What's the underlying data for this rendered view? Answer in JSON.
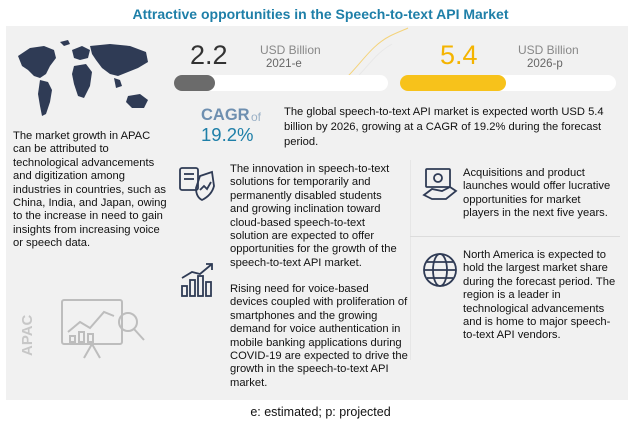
{
  "title": "Attractive opportunities in the Speech-to-text API Market",
  "market_2021": {
    "value": "2.2",
    "unit": "USD Billion",
    "year": "2021-e",
    "bar_fraction": 0.19
  },
  "market_2026": {
    "value": "5.4",
    "unit": "USD Billion",
    "year": "2026-p",
    "bar_fraction": 0.49
  },
  "cagr": {
    "label": "CAGR",
    "of_label": "of",
    "value": "19.2%"
  },
  "summary": "The global speech-to-text API market is expected worth USD 5.4 billion by 2026, growing at a CAGR of 19.2% during the forecast period.",
  "apac": {
    "text": "The market growth in APAC can be attributed to technological advancements and digitization among industries in countries, such as China, India, and Japan, owing to the increase in need to gain insights from increasing voice or speech data.",
    "vertical_label": "APAC"
  },
  "points": [
    {
      "icon": "shield-chart-icon",
      "text": "The innovation in speech-to-text solutions for temporarily and permanently disabled students and growing inclination toward cloud-based speech-to-text solution are expected to offer opportunities for the growth of the speech-to-text API market."
    },
    {
      "icon": "bar-trend-icon",
      "text": "Rising need for voice-based devices coupled with proliferation of smartphones and the growing demand for voice authentication in mobile banking applications during COVID-19 are expected to drive the growth in the speech-to-text API market."
    },
    {
      "icon": "money-icon",
      "text": "Acquisitions and product launches would offer lucrative opportunities for market players in the next five years."
    },
    {
      "icon": "globe-icon",
      "text": "North America is expected to hold the largest market share during the forecast period. The region is a leader in technological advancements and is home to major speech-to-text API vendors."
    }
  ],
  "footnote": "e: estimated; p: projected",
  "colors": {
    "title": "#1e7fa8",
    "bar_2021": "#6b6b6b",
    "bar_2026": "#f7c21b",
    "value_2026": "#f4b400",
    "panel": "#f1f1f1"
  }
}
